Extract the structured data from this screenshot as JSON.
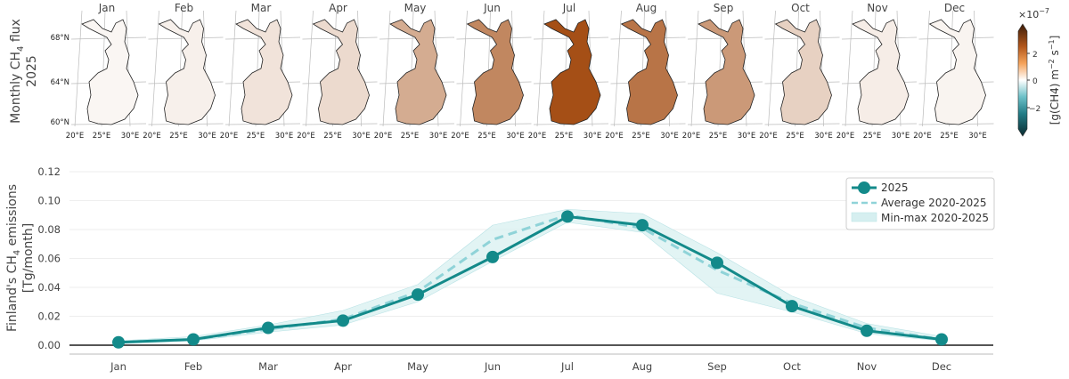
{
  "maps": {
    "ylabel_line1": "Monthly CH",
    "ylabel_sub": "4",
    "ylabel_line1_end": " flux",
    "ylabel_line2": "2025",
    "lat_ticks": [
      "68°N",
      "64°N",
      "60°N"
    ],
    "lon_ticks": [
      "20°E",
      "25°E",
      "30°E"
    ],
    "months": [
      "Jan",
      "Feb",
      "Mar",
      "Apr",
      "May",
      "Jun",
      "Jul",
      "Aug",
      "Sep",
      "Oct",
      "Nov",
      "Dec"
    ],
    "relative_intensity": [
      0.05,
      0.08,
      0.15,
      0.2,
      0.45,
      0.65,
      0.95,
      0.75,
      0.55,
      0.25,
      0.1,
      0.06
    ],
    "colorbar": {
      "exponent": "×10",
      "exponent_power": "−7",
      "ticks": [
        "2",
        "0",
        "−2"
      ],
      "label": "[g(CH4) m",
      "label_sup1": "−2",
      "label_mid": " s",
      "label_sup2": "−1",
      "label_end": "]"
    }
  },
  "chart_data": {
    "type": "line",
    "title": "",
    "xlabel": "",
    "ylabel_line1": "Finland's CH",
    "ylabel_sub": "4",
    "ylabel_line1_end": " emissions",
    "ylabel_line2": "[Tg/month]",
    "categories": [
      "Jan",
      "Feb",
      "Mar",
      "Apr",
      "May",
      "Jun",
      "Jul",
      "Aug",
      "Sep",
      "Oct",
      "Nov",
      "Dec"
    ],
    "ylim": [
      -0.006,
      0.125
    ],
    "yticks": [
      "0.00",
      "0.02",
      "0.04",
      "0.06",
      "0.08",
      "0.10",
      "0.12"
    ],
    "ytick_values": [
      0,
      0.02,
      0.04,
      0.06,
      0.08,
      0.1,
      0.12
    ],
    "grid": true,
    "legend_position": "top-right",
    "series": [
      {
        "name": "2025",
        "values": [
          0.002,
          0.004,
          0.012,
          0.017,
          0.035,
          0.061,
          0.089,
          0.083,
          0.057,
          0.027,
          0.01,
          0.004
        ]
      },
      {
        "name": "Average 2020-2025",
        "values": [
          0.002,
          0.004,
          0.011,
          0.018,
          0.037,
          0.073,
          0.09,
          0.081,
          0.052,
          0.029,
          0.012,
          0.004
        ]
      },
      {
        "name": "Min-max 2020-2025",
        "min": [
          0.001,
          0.003,
          0.009,
          0.014,
          0.03,
          0.058,
          0.085,
          0.078,
          0.036,
          0.023,
          0.008,
          0.003
        ],
        "max": [
          0.003,
          0.006,
          0.014,
          0.024,
          0.042,
          0.083,
          0.094,
          0.091,
          0.064,
          0.034,
          0.015,
          0.006
        ]
      }
    ],
    "colors": {
      "main": "#138a8a",
      "avg": "#8fd3d8",
      "band": "#d6eff0"
    }
  }
}
